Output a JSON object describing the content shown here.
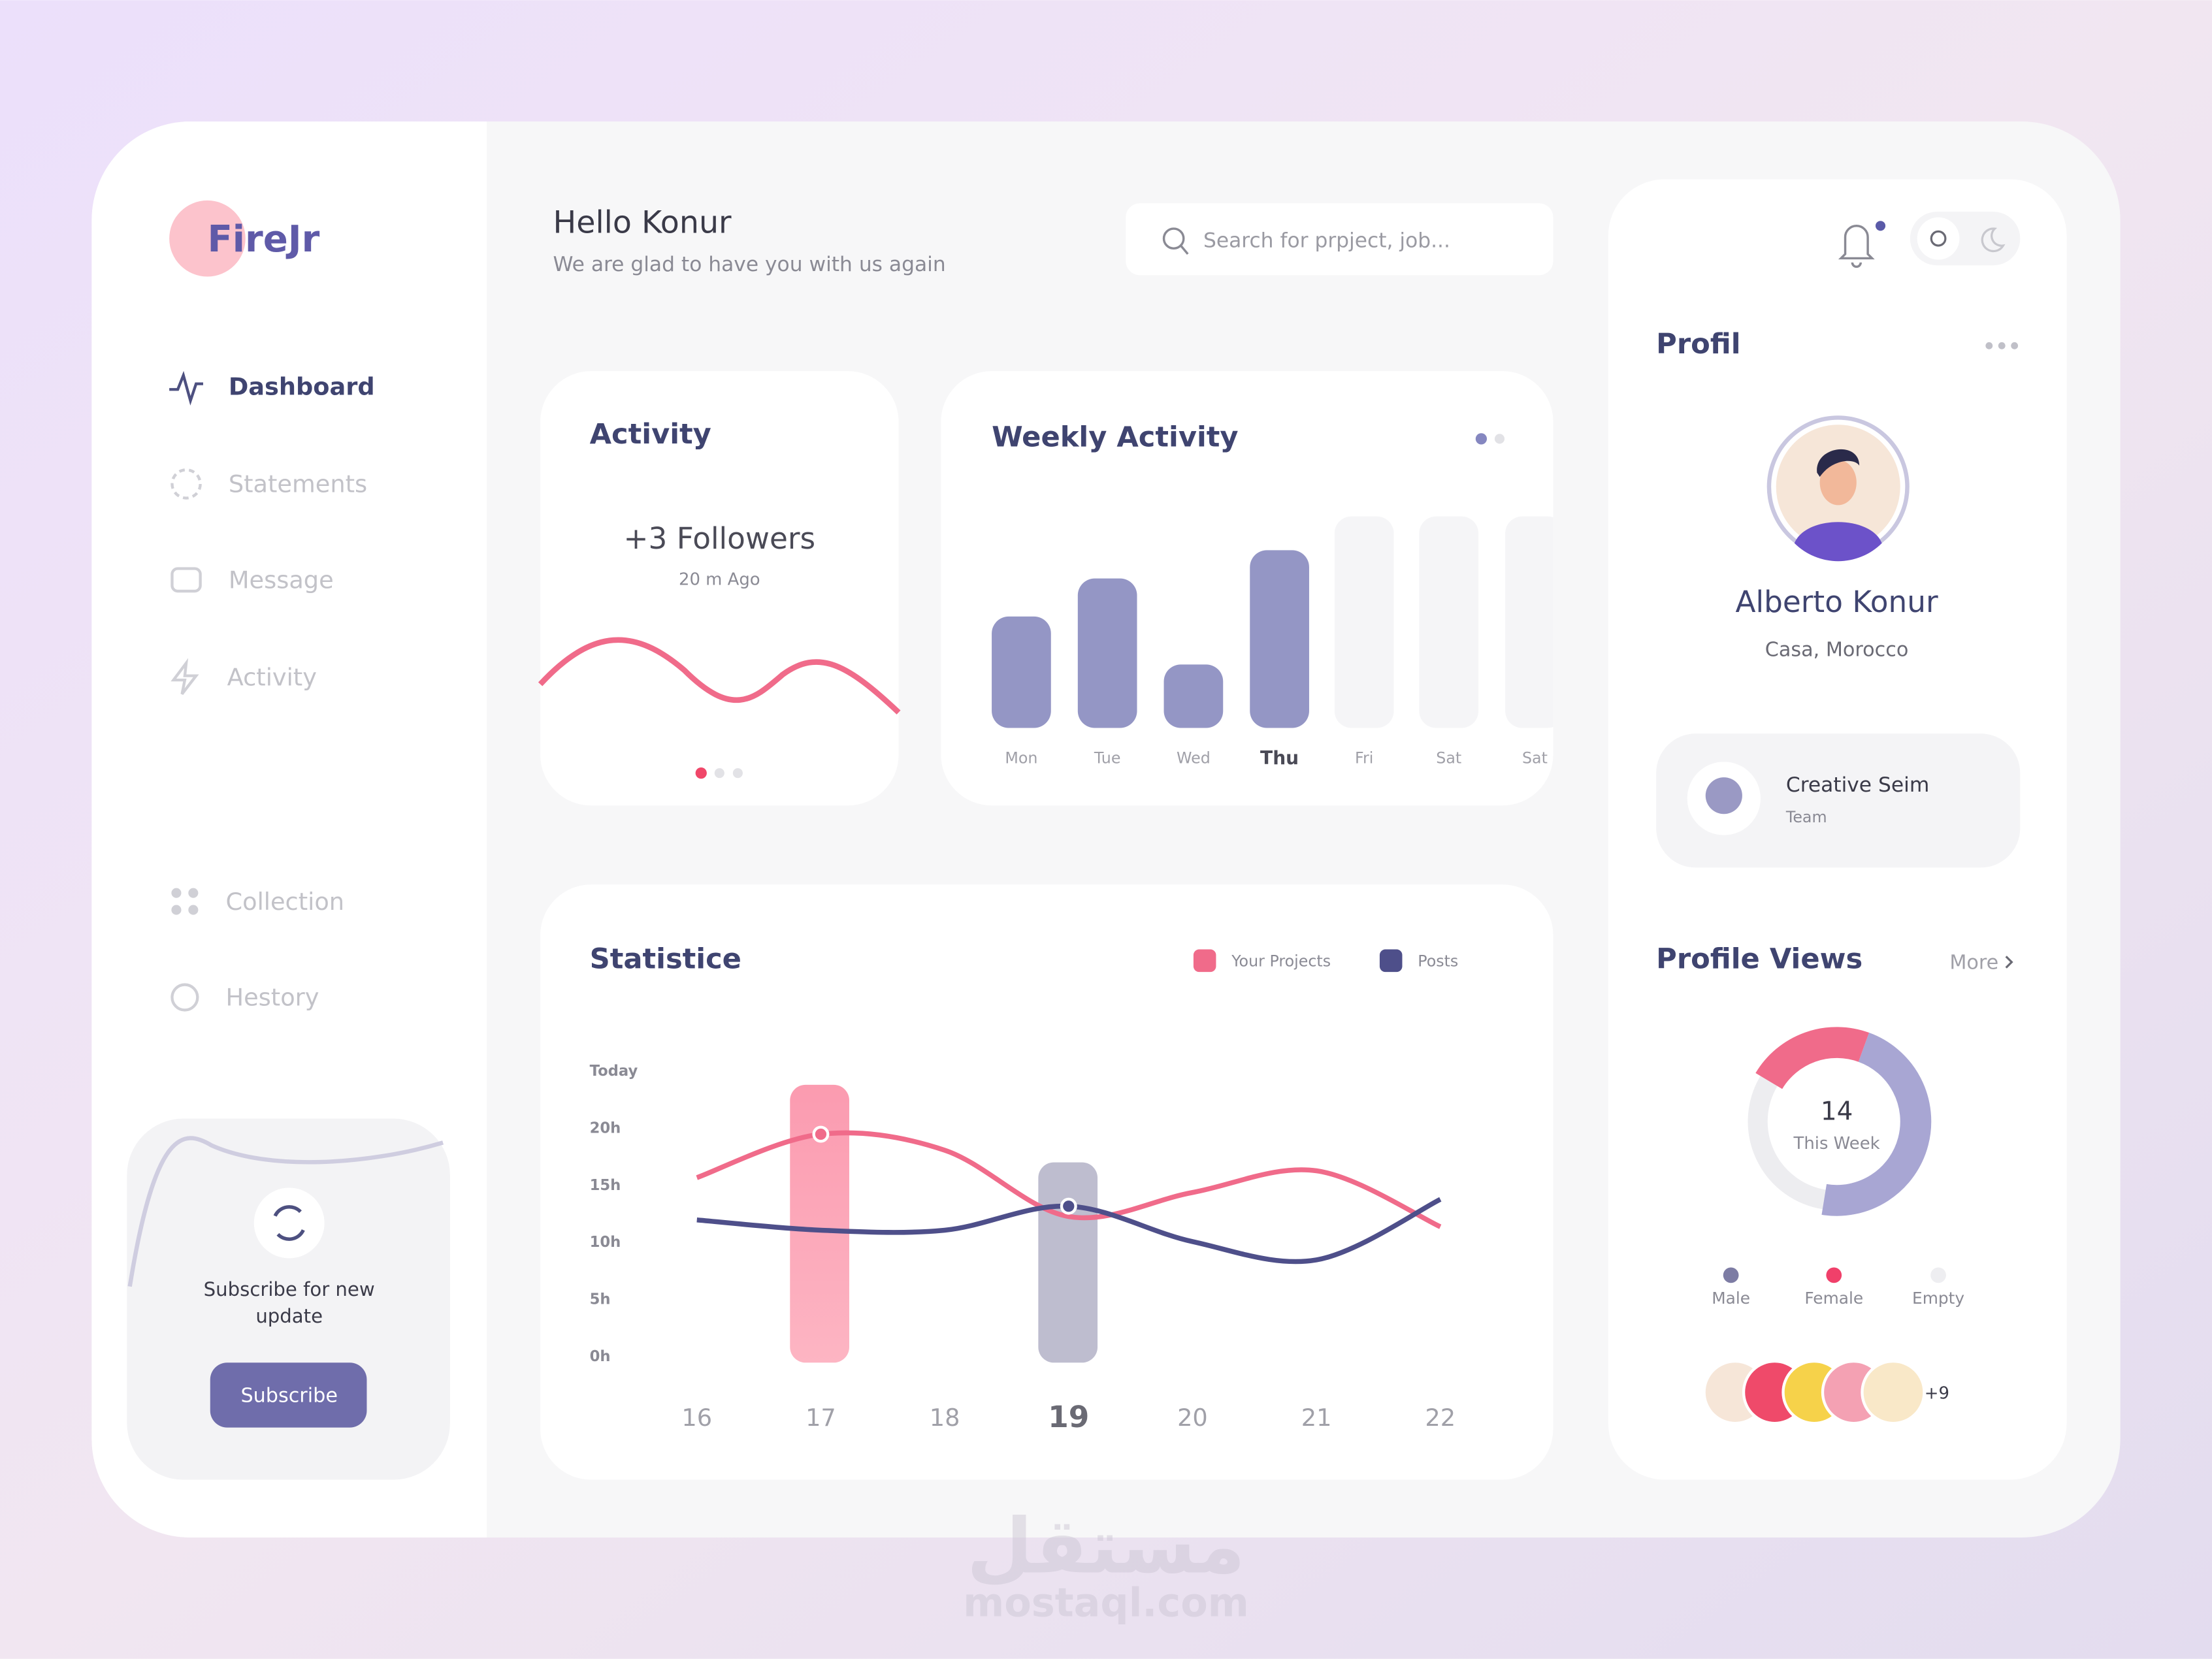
{
  "sidebar": {
    "brand": "FireJr",
    "nav": [
      "Dashboard",
      "Statements",
      "Message",
      "Activity",
      "Collection",
      "Hestory"
    ],
    "subscribe": {
      "text": [
        "Subscribe for new",
        "update"
      ],
      "button": "Subscribe"
    }
  },
  "header": {
    "title": "Hello Konur",
    "subtitle": "We are glad to have you with us again",
    "search_placeholder": "Search for prpject, job..."
  },
  "activity": {
    "title": "Activity",
    "headline": "+3 Followers",
    "time": "20 m Ago"
  },
  "weekly_activity": {
    "type": "bar",
    "title": "Weekly Activity",
    "categories": [
      "Mon",
      "Tue",
      "Wed",
      "Thu",
      "Fri",
      "Sat",
      "Sat"
    ],
    "values": [
      79,
      106,
      45,
      126,
      null,
      null,
      null
    ],
    "color": "#9496c5",
    "ylim": [
      0,
      150
    ]
  },
  "statistics": {
    "type": "line",
    "title": "Statistice",
    "x": [
      16,
      17,
      18,
      19,
      20,
      21,
      22
    ],
    "xlim": [
      16,
      22
    ],
    "ylim": [
      0,
      25
    ],
    "yticks": [
      {
        "value": 0,
        "label": "0h"
      },
      {
        "value": 5,
        "label": "5h"
      },
      {
        "value": 10,
        "label": "10h"
      },
      {
        "value": 15,
        "label": "15h"
      },
      {
        "value": 20,
        "label": "20h"
      },
      {
        "value": 25,
        "label": "Today"
      }
    ],
    "series": [
      {
        "name": "Your Projects",
        "color": "#f06b8a",
        "values": [
          15.7,
          19.5,
          18.1,
          12.3,
          14.4,
          16.3,
          11.4
        ]
      },
      {
        "name": "Posts",
        "color": "#4e4f8a",
        "values": [
          12,
          11.1,
          11.1,
          13.2,
          10.1,
          8.5,
          13.8
        ]
      }
    ]
  },
  "profile": {
    "title": "Profil",
    "name": "Alberto Konur",
    "location": "Casa, Morocco",
    "team": {
      "name": "Creative Seim",
      "role": "Team"
    }
  },
  "profile_views": {
    "type": "donut",
    "title": "Profile Views",
    "more": "More",
    "center_value": 14,
    "center_label": "This Week",
    "categories": [
      "Male",
      "Female",
      "Empty"
    ],
    "values": [
      47,
      22,
      31
    ],
    "colors": [
      "#a8a6d3",
      "#f06b8a",
      "#ededf0"
    ],
    "extra_viewers": "+9"
  },
  "watermark": [
    "مستقل",
    "mostaql.com"
  ]
}
